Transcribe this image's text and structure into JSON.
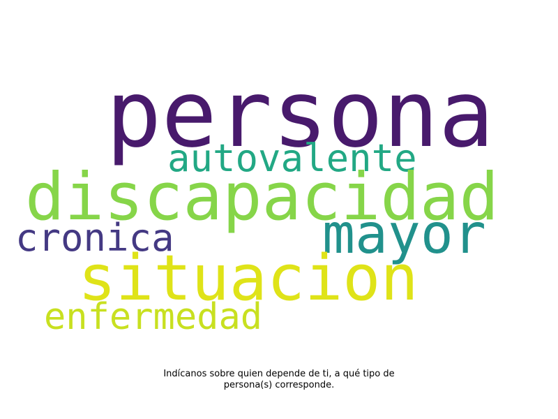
{
  "wordcloud": {
    "words": [
      {
        "text": "persona",
        "color": "#481a6c"
      },
      {
        "text": "autovalente",
        "color": "#22a884"
      },
      {
        "text": "discapacidad",
        "color": "#86d549"
      },
      {
        "text": "mayor",
        "color": "#21918c"
      },
      {
        "text": "cronica",
        "color": "#443983"
      },
      {
        "text": "situacion",
        "color": "#dfe318"
      },
      {
        "text": "enfermedad",
        "color": "#c8e020"
      }
    ]
  },
  "caption": {
    "line1": "Indícanos sobre quien depende de ti, a qué tipo de",
    "line2": "persona(s) corresponde."
  }
}
